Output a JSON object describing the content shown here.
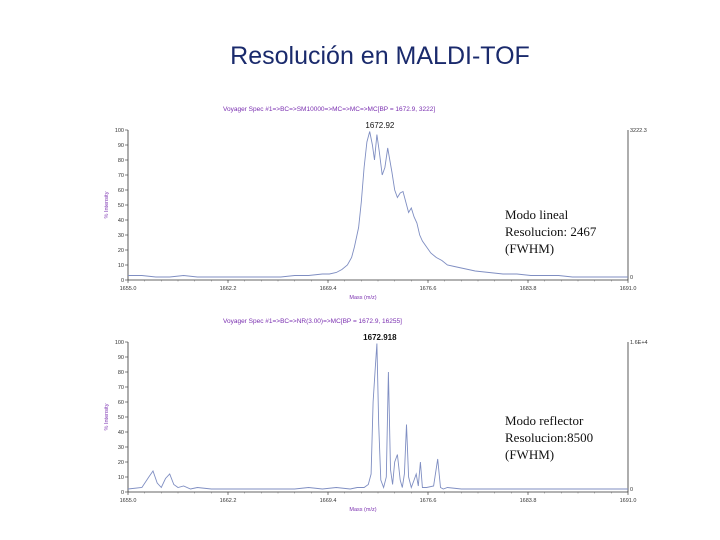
{
  "title": "Resolución en MALDI-TOF",
  "chart_data": [
    {
      "type": "line",
      "title": "Voyager Spec #1=>BC=>SM10000=>MC=>MC=>MC[BP = 1672.9, 3222]",
      "xlabel": "Mass (m/z)",
      "ylabel": "% Intensity",
      "xlim": [
        1655.0,
        1691.0
      ],
      "ylim": [
        0,
        100
      ],
      "x_ticks": [
        "1655.0",
        "1662.2",
        "1669.4",
        "1676.6",
        "1683.8",
        "1691.0"
      ],
      "y_ticks": [
        "0",
        "10",
        "20",
        "30",
        "40",
        "50",
        "60",
        "70",
        "80",
        "90",
        "100"
      ],
      "right_top_label": "3222.3",
      "right_bottom_label": "0",
      "peak_label": "1672.92",
      "peak_label_x": 1672.92,
      "annotation_lines": [
        "Modo lineal",
        "Resolucion: 2467",
        "(FWHM)"
      ],
      "color": "#7f8ec2",
      "series": [
        {
          "x": [
            1655.0,
            1656.0,
            1657.0,
            1658.0,
            1659.0,
            1660.0,
            1661.0,
            1662.0,
            1663.0,
            1664.0,
            1665.0,
            1666.0,
            1667.0,
            1668.0,
            1669.0,
            1669.5,
            1670.0,
            1670.4,
            1670.8,
            1671.1,
            1671.3,
            1671.6,
            1671.8,
            1672.0,
            1672.2,
            1672.4,
            1672.6,
            1672.75,
            1672.92,
            1673.1,
            1673.3,
            1673.5,
            1673.7,
            1673.85,
            1674.0,
            1674.2,
            1674.4,
            1674.6,
            1674.8,
            1675.0,
            1675.2,
            1675.4,
            1675.6,
            1675.8,
            1676.0,
            1676.2,
            1676.5,
            1676.8,
            1677.2,
            1677.6,
            1678.0,
            1678.5,
            1679.0,
            1679.5,
            1680.0,
            1681.0,
            1682.0,
            1683.0,
            1684.0,
            1685.0,
            1686.0,
            1687.0,
            1688.0,
            1689.0,
            1690.0,
            1691.0
          ],
          "y": [
            3,
            3,
            2,
            2,
            3,
            2,
            2,
            2,
            2,
            2,
            2,
            2,
            3,
            3,
            4,
            4,
            5,
            7,
            10,
            15,
            22,
            35,
            52,
            75,
            92,
            99,
            90,
            80,
            97,
            85,
            70,
            75,
            88,
            80,
            72,
            60,
            55,
            58,
            59,
            52,
            45,
            48,
            42,
            38,
            30,
            26,
            22,
            18,
            15,
            13,
            10,
            9,
            8,
            7,
            6,
            5,
            4,
            4,
            3,
            3,
            3,
            2,
            2,
            2,
            2,
            2
          ]
        }
      ]
    },
    {
      "type": "line",
      "title": "Voyager Spec #1=>BC=>NR(3.00)=>MC[BP = 1672.9, 16255]",
      "xlabel": "Mass (m/z)",
      "ylabel": "% Intensity",
      "xlim": [
        1655.0,
        1691.0
      ],
      "ylim": [
        0,
        100
      ],
      "x_ticks": [
        "1655.0",
        "1662.2",
        "1669.4",
        "1676.6",
        "1683.8",
        "1691.0"
      ],
      "y_ticks": [
        "0",
        "10",
        "20",
        "30",
        "40",
        "50",
        "60",
        "70",
        "80",
        "90",
        "100"
      ],
      "right_top_label": "1.6E+4",
      "right_bottom_label": "0",
      "peak_label": "1672.918",
      "peak_label_x": 1672.918,
      "annotation_lines": [
        "Modo reflector",
        "Resolucion:8500",
        "(FWHM)"
      ],
      "color": "#7f8ec2",
      "series": [
        {
          "x": [
            1655.0,
            1656.0,
            1656.5,
            1656.8,
            1657.1,
            1657.4,
            1657.7,
            1658.0,
            1658.3,
            1658.6,
            1659.0,
            1659.5,
            1660.0,
            1661.0,
            1662.0,
            1663.0,
            1664.0,
            1665.0,
            1666.0,
            1667.0,
            1668.0,
            1669.0,
            1670.0,
            1671.0,
            1671.5,
            1672.0,
            1672.3,
            1672.5,
            1672.65,
            1672.8,
            1672.918,
            1673.05,
            1673.2,
            1673.4,
            1673.6,
            1673.75,
            1673.9,
            1674.05,
            1674.2,
            1674.4,
            1674.6,
            1674.75,
            1674.9,
            1675.05,
            1675.2,
            1675.4,
            1675.6,
            1675.75,
            1675.9,
            1676.05,
            1676.2,
            1676.5,
            1677.0,
            1677.3,
            1677.5,
            1677.7,
            1678.0,
            1679.0,
            1680.0,
            1682.0,
            1684.0,
            1686.0,
            1688.0,
            1690.0,
            1691.0
          ],
          "y": [
            2,
            3,
            10,
            14,
            6,
            3,
            9,
            12,
            5,
            3,
            4,
            2,
            3,
            2,
            2,
            2,
            2,
            2,
            2,
            2,
            3,
            2,
            3,
            2,
            3,
            3,
            5,
            12,
            60,
            82,
            99,
            45,
            8,
            3,
            10,
            80,
            15,
            5,
            20,
            25,
            8,
            3,
            12,
            45,
            10,
            3,
            8,
            12,
            4,
            20,
            3,
            3,
            4,
            22,
            3,
            2,
            3,
            2,
            2,
            2,
            2,
            2,
            2,
            2,
            2
          ]
        }
      ]
    }
  ]
}
